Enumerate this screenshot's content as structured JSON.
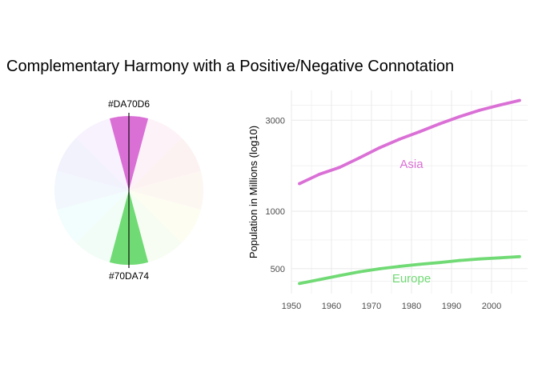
{
  "title": "Complementary Harmony with a Positive/Negative Connotation",
  "colors": {
    "positive": "#70DA74",
    "negative": "#DA70D6",
    "grid": "#EBEBEB",
    "axis_text": "#4D4D4D"
  },
  "chart_data": [
    {
      "type": "pie",
      "title": "",
      "wedges": [
        {
          "label": "#DA70D6",
          "color": "#DA70D6",
          "center_angle_deg": 0,
          "highlighted": true
        },
        {
          "label": "#70DA74",
          "color": "#70DA74",
          "center_angle_deg": 180,
          "highlighted": true
        }
      ],
      "background_hue_wedges": 12,
      "wedge_width_deg": 30
    },
    {
      "type": "line",
      "title": "",
      "xlabel": "",
      "ylabel": "Population in Millions (log10)",
      "yscale": "log10",
      "xlim": [
        1950,
        2009
      ],
      "ylim": [
        370,
        4300
      ],
      "x_ticks": [
        1950,
        1960,
        1970,
        1980,
        1990,
        2000
      ],
      "y_ticks": [
        500,
        1000,
        3000
      ],
      "grid": true,
      "legend": "none",
      "series": [
        {
          "name": "Asia",
          "color": "#DA70D6",
          "x": [
            1952,
            1957,
            1962,
            1967,
            1972,
            1977,
            1982,
            1987,
            1992,
            1997,
            2002,
            2007
          ],
          "values": [
            1395,
            1563,
            1697,
            1906,
            2151,
            2385,
            2610,
            2871,
            3133,
            3383,
            3601,
            3812
          ]
        },
        {
          "name": "Europe",
          "color": "#70DA74",
          "x": [
            1952,
            1957,
            1962,
            1967,
            1972,
            1977,
            1982,
            1987,
            1992,
            1997,
            2002,
            2007
          ],
          "values": [
            418,
            438,
            460,
            481,
            499,
            514,
            527,
            538,
            552,
            562,
            570,
            578
          ]
        }
      ],
      "annotations": [
        {
          "text": "Asia",
          "x": 1980,
          "y": 1750,
          "color": "#DA70D6"
        },
        {
          "text": "Europe",
          "x": 1980,
          "y": 440,
          "color": "#70DA74"
        }
      ]
    }
  ]
}
